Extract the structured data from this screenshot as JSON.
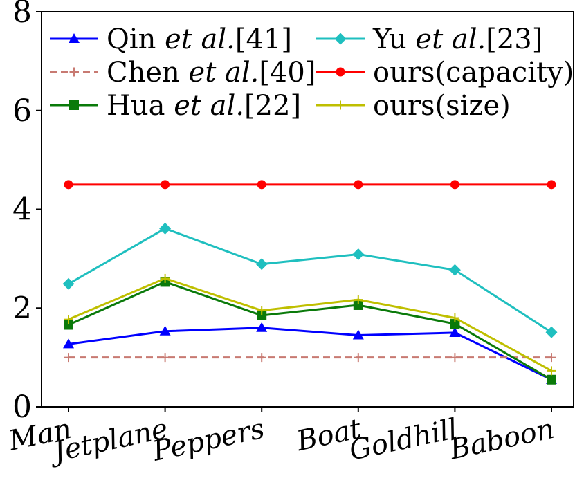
{
  "chart_data": {
    "type": "line",
    "categories": [
      "Man",
      "Jetplane",
      "Peppers",
      "Boat",
      "Goldhill",
      "Baboon"
    ],
    "ylim": [
      0,
      8
    ],
    "yticks": [
      "0",
      "2",
      "4",
      "6",
      "8"
    ],
    "grid": false,
    "legend_placement": "top",
    "series": [
      {
        "name": "Qin",
        "name_suffix": "et al.",
        "ref": "[41]",
        "color": "#0000ff",
        "marker": "triangle",
        "dash": false,
        "values": [
          1.27,
          1.53,
          1.6,
          1.45,
          1.5,
          0.55
        ]
      },
      {
        "name": "Chen",
        "name_suffix": "et al.",
        "ref": "[40]",
        "color": "#c87a72",
        "marker": "plus",
        "dash": true,
        "values": [
          1.0,
          1.0,
          1.0,
          1.0,
          1.0,
          1.0
        ]
      },
      {
        "name": "Hua",
        "name_suffix": "et al.",
        "ref": "[22]",
        "color": "#0a7a0a",
        "marker": "square",
        "dash": false,
        "values": [
          1.66,
          2.53,
          1.85,
          2.06,
          1.68,
          0.55
        ]
      },
      {
        "name": "Yu",
        "name_suffix": "et al.",
        "ref": "[23]",
        "color": "#1fbfbf",
        "marker": "diamond",
        "dash": false,
        "values": [
          2.49,
          3.61,
          2.89,
          3.09,
          2.77,
          1.51
        ]
      },
      {
        "name": "ours(capacity)",
        "name_suffix": "",
        "ref": "",
        "color": "#ff0000",
        "marker": "circle",
        "dash": false,
        "values": [
          4.5,
          4.5,
          4.5,
          4.5,
          4.5,
          4.5
        ]
      },
      {
        "name": "ours(size)",
        "name_suffix": "",
        "ref": "",
        "color": "#bfbf00",
        "marker": "plus",
        "dash": false,
        "values": [
          1.77,
          2.6,
          1.95,
          2.17,
          1.8,
          0.73
        ]
      }
    ]
  }
}
